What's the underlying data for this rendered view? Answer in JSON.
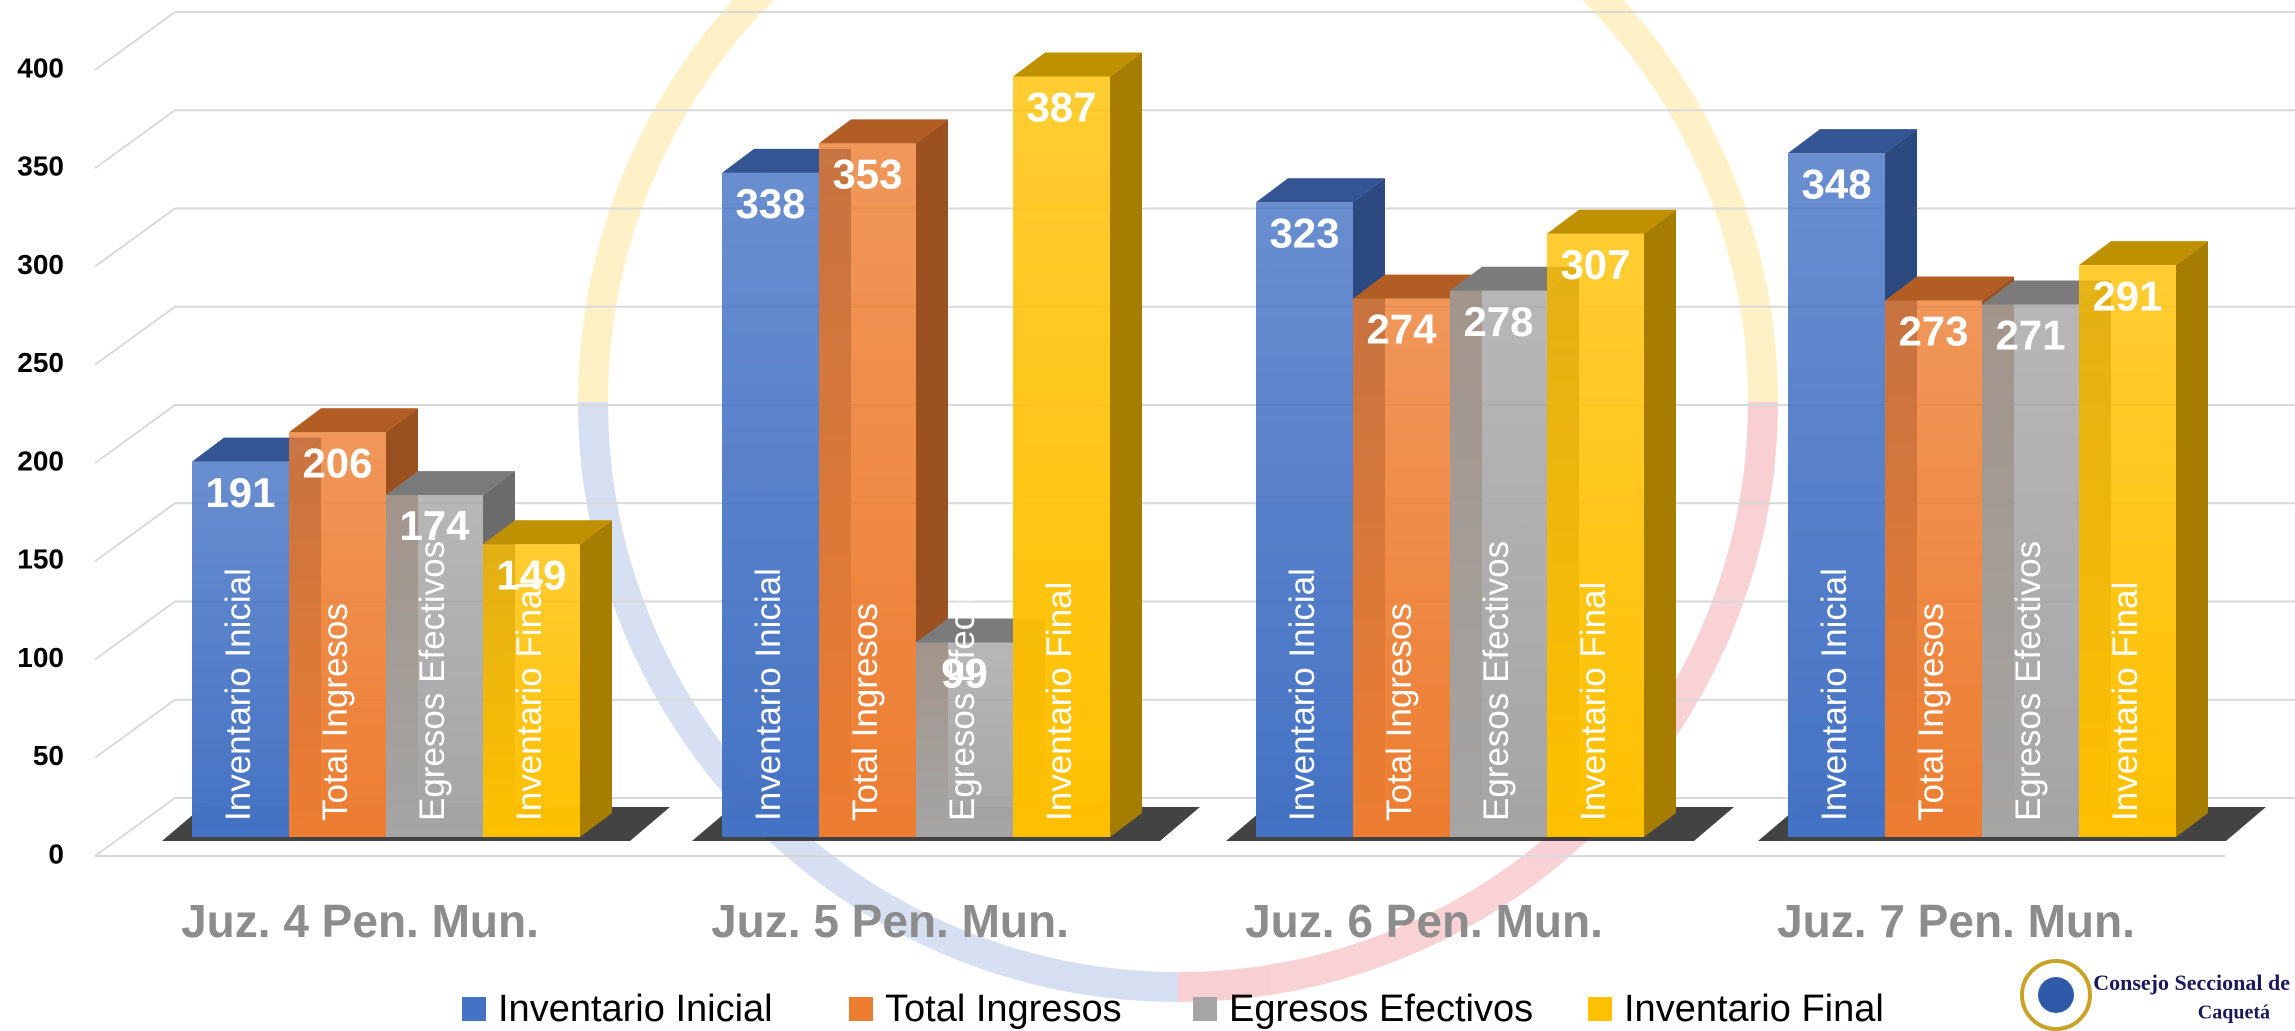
{
  "chart_data": {
    "type": "bar3d",
    "categories": [
      "Juz. 4 Pen. Mun.",
      "Juz. 5 Pen. Mun.",
      "Juz. 6 Pen. Mun.",
      "Juz. 7 Pen. Mun."
    ],
    "series": [
      {
        "name": "Inventario Inicial",
        "color": "#4472c4",
        "values": [
          191,
          338,
          323,
          348
        ]
      },
      {
        "name": "Total Ingresos",
        "color": "#ed7d31",
        "values": [
          206,
          353,
          274,
          273
        ]
      },
      {
        "name": "Egresos Efectivos",
        "color": "#a5a5a5",
        "values": [
          174,
          99,
          278,
          271
        ]
      },
      {
        "name": "Inventario Final",
        "color": "#ffc000",
        "values": [
          149,
          387,
          307,
          291
        ]
      }
    ],
    "ylim": [
      0,
      400
    ],
    "yticks": [
      0,
      50,
      100,
      150,
      200,
      250,
      300,
      350,
      400
    ],
    "grid": true
  },
  "logo": {
    "line1": "Consejo Seccional de",
    "line2": "Caquetá"
  }
}
